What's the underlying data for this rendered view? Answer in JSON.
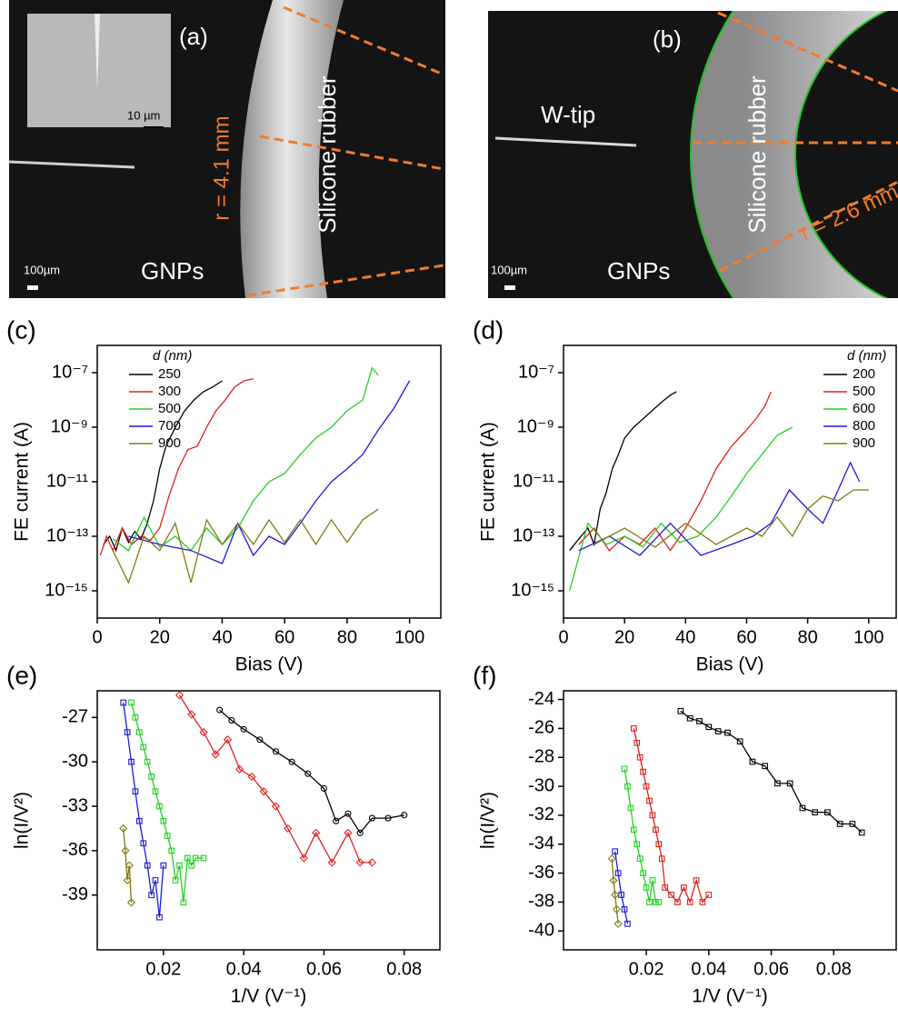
{
  "panels": [
    {
      "label": "(a)",
      "inset_scale": "10 µm",
      "radius": "r = 4.1 mm",
      "material": "Silicone rubber",
      "scale_bar": "100µm",
      "region": "GNPs"
    },
    {
      "label": "(b)",
      "tip": "W-tip",
      "material": "Silicone rubber",
      "radius": "r = 2.6 mm",
      "scale_bar": "100µm",
      "region": "GNPs"
    }
  ],
  "chart_data": [
    {
      "type": "line",
      "panel_label": "(c)",
      "xlabel": "Bias (V)",
      "ylabel": "FE current (A)",
      "log_y": true,
      "xlim": [
        0,
        110
      ],
      "xticks": [
        0,
        20,
        40,
        60,
        80,
        100
      ],
      "ylim": [
        1e-16,
        1e-06
      ],
      "yticks": [
        {
          "value": 1e-15,
          "label": "10⁻¹⁵"
        },
        {
          "value": 1e-13,
          "label": "10⁻¹³"
        },
        {
          "value": 1e-11,
          "label": "10⁻¹¹"
        },
        {
          "value": 1e-09,
          "label": "10⁻⁹"
        },
        {
          "value": 1e-07,
          "label": "10⁻⁷"
        }
      ],
      "legend_title": "d (nm)",
      "legend_position": "upper left",
      "series": [
        {
          "name": "250",
          "color": "#000000",
          "x": [
            2,
            4,
            6,
            8,
            10,
            12,
            14,
            16,
            18,
            20,
            22,
            25,
            28,
            31,
            34,
            37,
            40
          ],
          "values": [
            5e-14,
            1e-13,
            3e-14,
            2e-13,
            6e-14,
            1.5e-13,
            8e-14,
            3e-13,
            2e-12,
            3e-11,
            2e-10,
            1e-09,
            4e-09,
            1e-08,
            2e-08,
            3e-08,
            5e-08
          ]
        },
        {
          "name": "300",
          "color": "#e0201b",
          "x": [
            1,
            3,
            5,
            8,
            11,
            14,
            17,
            20,
            23,
            26,
            29,
            32,
            35,
            38,
            41,
            44,
            47,
            50
          ],
          "values": [
            2e-14,
            1e-13,
            3e-14,
            2e-13,
            5e-14,
            1e-13,
            7e-14,
            2e-13,
            3e-12,
            3e-11,
            1.5e-10,
            2e-10,
            1e-09,
            4e-09,
            1e-08,
            3e-08,
            5e-08,
            6e-08
          ]
        },
        {
          "name": "500",
          "color": "#22d022",
          "x": [
            5,
            10,
            15,
            20,
            25,
            30,
            35,
            40,
            45,
            50,
            55,
            60,
            65,
            70,
            75,
            80,
            85,
            88,
            90
          ],
          "values": [
            8e-14,
            3e-14,
            5e-13,
            4e-14,
            1e-13,
            3e-14,
            2e-13,
            5e-14,
            2e-13,
            2e-12,
            1e-11,
            2e-11,
            1e-10,
            4e-10,
            1e-09,
            4e-09,
            1e-08,
            1.5e-07,
            8e-08
          ]
        },
        {
          "name": "700",
          "color": "#1a1adb",
          "x": [
            10,
            20,
            30,
            40,
            45,
            50,
            55,
            60,
            65,
            70,
            75,
            80,
            85,
            90,
            95,
            100
          ],
          "values": [
            1e-13,
            5e-14,
            3e-14,
            1e-14,
            3e-13,
            2e-14,
            1e-13,
            5e-14,
            3e-13,
            2e-12,
            1e-11,
            3e-11,
            1e-10,
            8e-10,
            5e-09,
            5e-08
          ]
        },
        {
          "name": "900",
          "color": "#7f7a12",
          "x": [
            5,
            10,
            15,
            20,
            25,
            30,
            35,
            40,
            45,
            50,
            55,
            60,
            65,
            70,
            75,
            80,
            85,
            90
          ],
          "values": [
            3e-14,
            2e-15,
            1e-13,
            3e-14,
            3e-13,
            2e-15,
            4e-13,
            5e-14,
            3e-13,
            5e-14,
            4e-13,
            6e-14,
            4e-13,
            5e-14,
            4e-13,
            6e-14,
            4e-13,
            1e-12
          ]
        }
      ]
    },
    {
      "type": "line",
      "panel_label": "(d)",
      "xlabel": "Bias (V)",
      "ylabel": "FE current (A)",
      "log_y": true,
      "xlim": [
        0,
        109
      ],
      "xticks": [
        0,
        20,
        40,
        60,
        80,
        100
      ],
      "ylim": [
        1e-16,
        1e-06
      ],
      "yticks": [
        {
          "value": 1e-15,
          "label": "10⁻¹⁵"
        },
        {
          "value": 1e-13,
          "label": "10⁻¹³"
        },
        {
          "value": 1e-11,
          "label": "10⁻¹¹"
        },
        {
          "value": 1e-09,
          "label": "10⁻⁹"
        },
        {
          "value": 1e-07,
          "label": "10⁻⁷"
        }
      ],
      "legend_title": "d (nm)",
      "legend_position": "upper right",
      "series": [
        {
          "name": "200",
          "color": "#000000",
          "x": [
            2,
            5,
            8,
            10,
            12,
            14,
            16,
            18,
            20,
            23,
            26,
            29,
            32,
            35,
            37
          ],
          "values": [
            3e-14,
            8e-14,
            2e-13,
            5e-14,
            1e-12,
            4e-12,
            3e-11,
            1e-10,
            4e-10,
            1e-09,
            2e-09,
            4e-09,
            8e-09,
            1.5e-08,
            2e-08
          ]
        },
        {
          "name": "500",
          "color": "#e0201b",
          "x": [
            5,
            10,
            15,
            20,
            25,
            30,
            35,
            40,
            45,
            50,
            55,
            60,
            63,
            66,
            68
          ],
          "values": [
            5e-14,
            2e-13,
            3e-14,
            1e-13,
            5e-14,
            2e-13,
            3e-14,
            2e-13,
            2e-12,
            3e-11,
            2e-10,
            8e-10,
            2e-09,
            6e-09,
            2e-08
          ]
        },
        {
          "name": "600",
          "color": "#22d022",
          "x": [
            2,
            8,
            14,
            20,
            26,
            32,
            38,
            44,
            50,
            55,
            60,
            65,
            70,
            75
          ],
          "values": [
            1e-15,
            3e-13,
            5e-14,
            1e-13,
            4e-14,
            3e-13,
            6e-14,
            1e-13,
            5e-13,
            3e-12,
            2e-11,
            1e-10,
            5e-10,
            1e-09
          ]
        },
        {
          "name": "800",
          "color": "#1a1adb",
          "x": [
            5,
            15,
            25,
            35,
            45,
            55,
            62,
            68,
            74,
            80,
            85,
            90,
            94,
            97
          ],
          "values": [
            3e-14,
            1e-13,
            2e-14,
            3e-13,
            2e-14,
            5e-14,
            1e-13,
            3e-13,
            5e-12,
            1e-12,
            3e-13,
            5e-12,
            5e-11,
            1e-11
          ]
        },
        {
          "name": "900",
          "color": "#7f7a12",
          "x": [
            10,
            20,
            30,
            40,
            50,
            60,
            65,
            70,
            75,
            80,
            85,
            90,
            95,
            100
          ],
          "values": [
            5e-14,
            2e-13,
            4e-14,
            3e-13,
            5e-14,
            2e-13,
            1e-13,
            5e-13,
            1e-13,
            1e-12,
            3e-12,
            2e-12,
            5e-12,
            5e-12
          ]
        }
      ]
    },
    {
      "type": "line",
      "panel_label": "(e)",
      "xlabel": "1/V (V⁻¹)",
      "ylabel": "ln(I/V²)",
      "log_y": false,
      "xlim": [
        0.0035,
        0.0889
      ],
      "xticks": [
        0.02,
        0.04,
        0.06,
        0.08
      ],
      "ylim": [
        -42.7,
        -25.2
      ],
      "yticks": [
        -39,
        -36,
        -33,
        -30,
        -27
      ],
      "series": [
        {
          "color": "#000000",
          "marker": "circle",
          "x": [
            0.034,
            0.037,
            0.04,
            0.044,
            0.048,
            0.052,
            0.056,
            0.06,
            0.063,
            0.066,
            0.069,
            0.072,
            0.076,
            0.08
          ],
          "values": [
            -26.5,
            -27.2,
            -27.8,
            -28.5,
            -29.3,
            -30.0,
            -30.8,
            -31.8,
            -34.0,
            -33.5,
            -34.8,
            -33.8,
            -33.8,
            -33.6
          ]
        },
        {
          "color": "#e0201b",
          "marker": "diamond",
          "x": [
            0.024,
            0.027,
            0.03,
            0.033,
            0.036,
            0.039,
            0.042,
            0.045,
            0.048,
            0.051,
            0.055,
            0.058,
            0.062,
            0.066,
            0.069,
            0.072
          ],
          "values": [
            -25.5,
            -26.8,
            -28,
            -29.5,
            -28.5,
            -30.5,
            -31,
            -32,
            -33,
            -34.5,
            -36.5,
            -34.8,
            -36.8,
            -34.8,
            -36.8,
            -36.8
          ]
        },
        {
          "color": "#22d022",
          "marker": "square",
          "x": [
            0.012,
            0.013,
            0.014,
            0.015,
            0.016,
            0.017,
            0.018,
            0.019,
            0.02,
            0.021,
            0.022,
            0.023,
            0.024,
            0.025,
            0.026,
            0.027,
            0.028,
            0.03
          ],
          "values": [
            -26,
            -27,
            -28,
            -29,
            -30,
            -31,
            -32,
            -33,
            -34,
            -35,
            -36,
            -38,
            -37,
            -39.5,
            -36.5,
            -37,
            -36.5,
            -36.5
          ]
        },
        {
          "color": "#1a1adb",
          "marker": "square",
          "x": [
            0.01,
            0.011,
            0.012,
            0.013,
            0.014,
            0.015,
            0.016,
            0.017,
            0.018,
            0.019,
            0.02
          ],
          "values": [
            -26,
            -28,
            -30,
            -32,
            -34,
            -35.5,
            -37,
            -39,
            -38,
            -40.5,
            -37
          ]
        },
        {
          "color": "#7f7a12",
          "marker": "diamond",
          "x": [
            0.01,
            0.0105,
            0.011,
            0.0115,
            0.012
          ],
          "values": [
            -34.5,
            -36,
            -38,
            -37,
            -39.5
          ]
        }
      ]
    },
    {
      "type": "line",
      "panel_label": "(f)",
      "xlabel": "1/V (V⁻¹)",
      "ylabel": "ln(I/V²)",
      "log_y": false,
      "xlim": [
        -0.0065,
        0.1
      ],
      "xticks": [
        0.02,
        0.04,
        0.06,
        0.08
      ],
      "ylim": [
        -41.3,
        -23.4
      ],
      "yticks": [
        -40,
        -38,
        -36,
        -34,
        -32,
        -30,
        -28,
        -26,
        -24
      ],
      "series": [
        {
          "color": "#000000",
          "marker": "square",
          "x": [
            0.031,
            0.034,
            0.037,
            0.04,
            0.043,
            0.046,
            0.05,
            0.054,
            0.058,
            0.062,
            0.066,
            0.07,
            0.074,
            0.078,
            0.082,
            0.086,
            0.089
          ],
          "values": [
            -24.8,
            -25.3,
            -25.5,
            -25.9,
            -26.2,
            -26.3,
            -26.9,
            -28.3,
            -28.6,
            -29.8,
            -29.8,
            -31.5,
            -31.8,
            -31.8,
            -32.6,
            -32.6,
            -33.2
          ]
        },
        {
          "color": "#e0201b",
          "marker": "square",
          "x": [
            0.016,
            0.017,
            0.018,
            0.019,
            0.02,
            0.021,
            0.022,
            0.023,
            0.024,
            0.025,
            0.026,
            0.028,
            0.03,
            0.032,
            0.034,
            0.036,
            0.038,
            0.04
          ],
          "values": [
            -26,
            -27,
            -28,
            -29,
            -30,
            -31,
            -32,
            -33,
            -34,
            -35,
            -37,
            -37.5,
            -38,
            -37,
            -38,
            -36.5,
            -38,
            -37.5
          ]
        },
        {
          "color": "#22d022",
          "marker": "square",
          "x": [
            0.013,
            0.014,
            0.015,
            0.016,
            0.017,
            0.018,
            0.019,
            0.02,
            0.021,
            0.022,
            0.023,
            0.024
          ],
          "values": [
            -28.8,
            -30,
            -31.5,
            -33,
            -34,
            -35,
            -36,
            -37,
            -38,
            -36.5,
            -38,
            -38
          ]
        },
        {
          "color": "#1a1adb",
          "marker": "square",
          "x": [
            0.01,
            0.011,
            0.012,
            0.013,
            0.014
          ],
          "values": [
            -34.5,
            -36,
            -37.5,
            -38.5,
            -39.5
          ]
        },
        {
          "color": "#7f7a12",
          "marker": "diamond",
          "x": [
            0.009,
            0.0095,
            0.01,
            0.0105,
            0.011
          ],
          "values": [
            -35,
            -36.5,
            -37.5,
            -38.5,
            -39.5
          ]
        }
      ]
    }
  ]
}
